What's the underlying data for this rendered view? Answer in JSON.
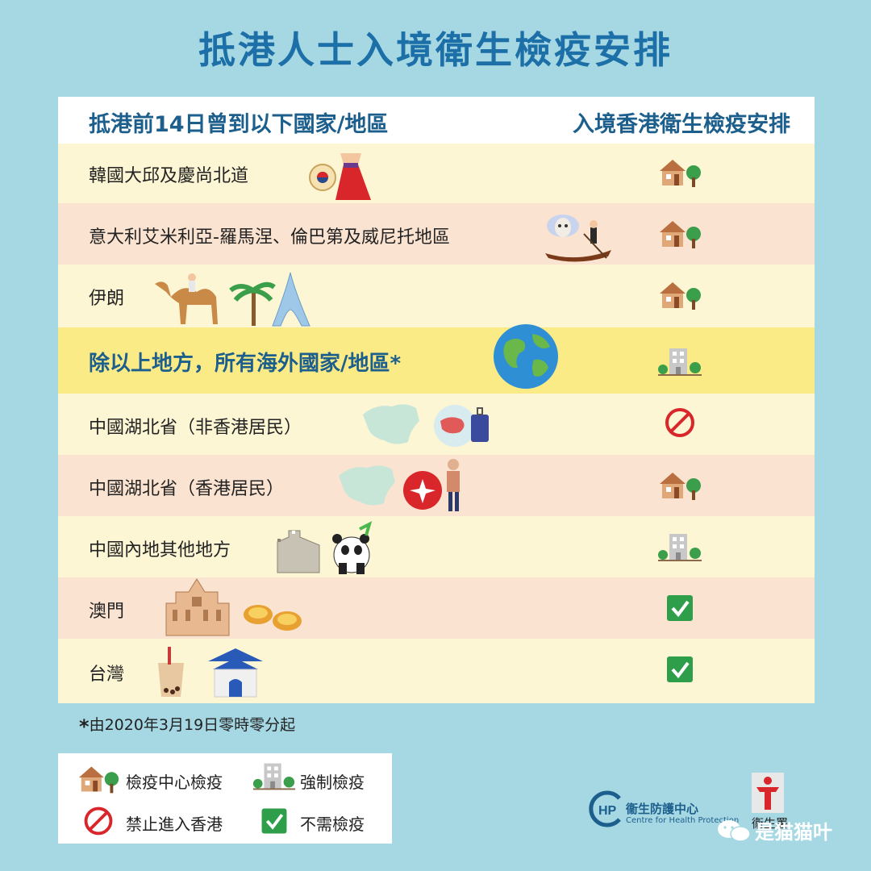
{
  "title": "抵港人士入境衛生檢疫安排",
  "header": {
    "left": "抵港前14日曾到以下國家/地區",
    "right": "入境香港衛生檢疫安排"
  },
  "rows": [
    {
      "label": "韓國大邱及慶尚北道",
      "status": "home-quarantine",
      "bg": "#fdf6d4"
    },
    {
      "label": "意大利艾米利亞-羅馬涅、倫巴第及威尼托地區",
      "status": "home-quarantine",
      "bg": "#fbe3d1"
    },
    {
      "label": "伊朗",
      "status": "home-quarantine",
      "bg": "#fdf6d4"
    },
    {
      "label": "除以上地方，所有海外國家/地區*",
      "status": "compulsory-quarantine",
      "bg": "#fbeb86"
    },
    {
      "label": "中國湖北省（非香港居民）",
      "status": "entry-prohibited",
      "bg": "#fdf6d4"
    },
    {
      "label": "中國湖北省（香港居民）",
      "status": "home-quarantine",
      "bg": "#fbe3d1"
    },
    {
      "label": "中國內地其他地方",
      "status": "compulsory-quarantine",
      "bg": "#fdf6d4"
    },
    {
      "label": "澳門",
      "status": "no-quarantine",
      "bg": "#fbe3d1"
    },
    {
      "label": "台灣",
      "status": "no-quarantine",
      "bg": "#fdf6d4"
    }
  ],
  "footnote": {
    "star": "*",
    "text": "由2020年3月19日零時零分起"
  },
  "legend": {
    "home": "檢疫中心檢疫",
    "compulsory": "強制檢疫",
    "prohibited": "禁止進入香港",
    "none": "不需檢疫"
  },
  "logos": {
    "chp_title": "衞生防護中心",
    "chp_sub": "Centre for Health Protection",
    "dh": "衞生署"
  },
  "watermark": "是猫猫叶",
  "colors": {
    "background": "#a6d8e4",
    "title": "#1d6fa8",
    "header_text": "#1d5f8c",
    "prohibited": "#d8262b",
    "check": "#2e9e4a"
  }
}
